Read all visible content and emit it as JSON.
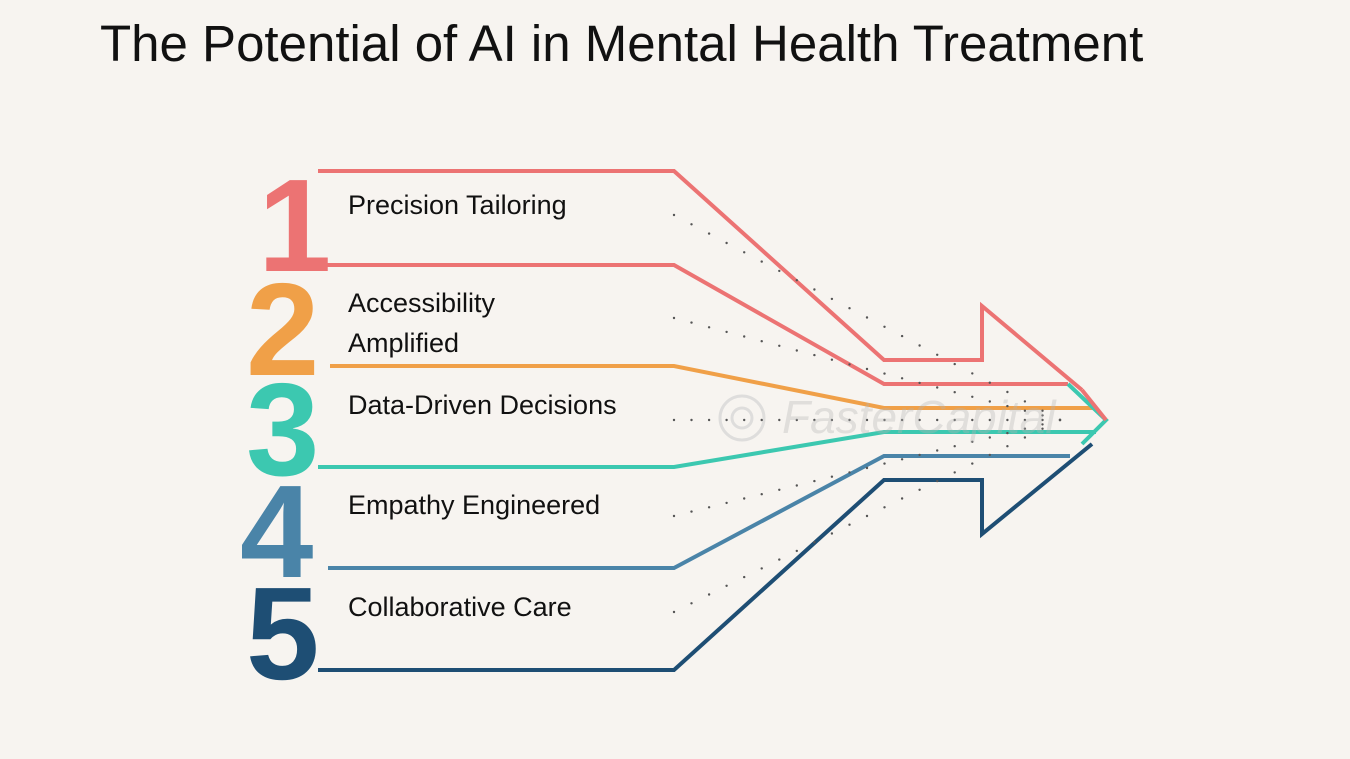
{
  "title": "The Potential of AI in Mental Health Treatment",
  "colors": {
    "step1": "#ec7373",
    "step2": "#f0a048",
    "step3": "#3cc8b0",
    "step4": "#4a84a8",
    "step5": "#1e4e74",
    "background": "#f7f4f0"
  },
  "steps": [
    {
      "number": "1",
      "label": "Precision Tailoring"
    },
    {
      "number": "2",
      "label_line1": "Accessibility",
      "label_line2": "Amplified"
    },
    {
      "number": "3",
      "label": "Data-Driven Decisions"
    },
    {
      "number": "4",
      "label": "Empathy Engineered"
    },
    {
      "number": "5",
      "label": "Collaborative Care"
    }
  ],
  "watermark": "FasterCapital"
}
